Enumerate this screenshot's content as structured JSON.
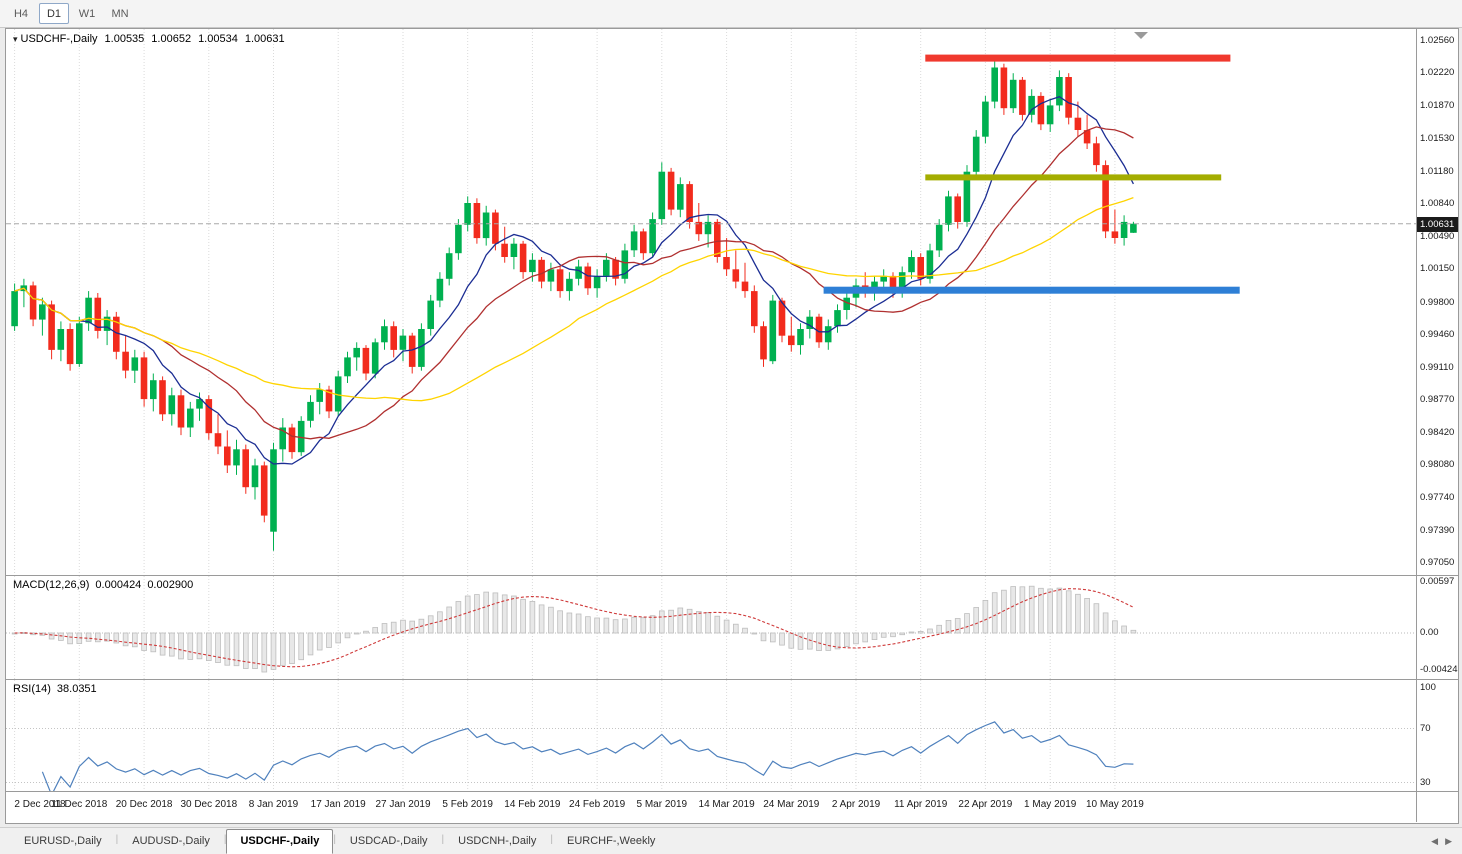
{
  "toolbar": {
    "timeframes": [
      {
        "label": "H4",
        "active": false
      },
      {
        "label": "D1",
        "active": true
      },
      {
        "label": "W1",
        "active": false
      },
      {
        "label": "MN",
        "active": false
      }
    ]
  },
  "chart": {
    "title": "USDCHF-,Daily",
    "ohlc": {
      "open": "1.00535",
      "high": "1.00652",
      "low": "1.00534",
      "close": "1.00631"
    },
    "current_price": "1.00631"
  },
  "indicators": {
    "macd": {
      "name": "MACD(12,26,9)",
      "value_main": "0.000424",
      "value_signal": "0.002900",
      "axis": [
        {
          "label": "0.00597",
          "value": 0.00597
        },
        {
          "label": "0.00",
          "value": 0
        },
        {
          "label": "-0.00424",
          "value": -0.00424
        }
      ]
    },
    "rsi": {
      "name": "RSI(14)",
      "value": "38.0351",
      "levels": [
        70,
        30
      ],
      "axis": [
        {
          "label": "100",
          "value": 100
        },
        {
          "label": "70",
          "value": 70
        },
        {
          "label": "30",
          "value": 30
        }
      ]
    }
  },
  "tabs": {
    "items": [
      {
        "label": "EURUSD-,Daily",
        "active": false
      },
      {
        "label": "AUDUSD-,Daily",
        "active": false
      },
      {
        "label": "USDCHF-,Daily",
        "active": true
      },
      {
        "label": "USDCAD-,Daily",
        "active": false
      },
      {
        "label": "USDCNH-,Daily",
        "active": false
      },
      {
        "label": "EURCHF-,Weekly",
        "active": false
      }
    ]
  },
  "colors": {
    "up": "#00b050",
    "down": "#f22b1d",
    "grid": "#dadada",
    "price_line": "#a8a8a8",
    "badge_bg": "#1b1b1b",
    "macd_hist_fill": "#e8e8e8",
    "macd_hist_stroke": "#bdbdbd",
    "macd_signal": "#cf3a3a",
    "rsi_line": "#4f81bd"
  },
  "chart_data": {
    "type": "candlestick",
    "symbol": "USDCHF",
    "period": "Daily",
    "price_range": {
      "top": 1.0256,
      "bottom": 0.9705
    },
    "price_axis": [
      "1.02560",
      "1.02220",
      "1.01870",
      "1.01530",
      "1.01180",
      "1.00840",
      "1.00490",
      "1.00150",
      "0.99800",
      "0.99460",
      "0.99110",
      "0.98770",
      "0.98420",
      "0.98080",
      "0.97740",
      "0.97390",
      "0.97050"
    ],
    "current_price": 1.00631,
    "x_ticks": [
      {
        "bar": 0,
        "label": "2 Dec 2018"
      },
      {
        "bar": 7,
        "label": "11 Dec 2018"
      },
      {
        "bar": 14,
        "label": "20 Dec 2018"
      },
      {
        "bar": 21,
        "label": "30 Dec 2018"
      },
      {
        "bar": 28,
        "label": "8 Jan 2019"
      },
      {
        "bar": 35,
        "label": "17 Jan 2019"
      },
      {
        "bar": 42,
        "label": "27 Jan 2019"
      },
      {
        "bar": 49,
        "label": "5 Feb 2019"
      },
      {
        "bar": 56,
        "label": "14 Feb 2019"
      },
      {
        "bar": 63,
        "label": "24 Feb 2019"
      },
      {
        "bar": 70,
        "label": "5 Mar 2019"
      },
      {
        "bar": 77,
        "label": "14 Mar 2019"
      },
      {
        "bar": 84,
        "label": "24 Mar 2019"
      },
      {
        "bar": 91,
        "label": "2 Apr 2019"
      },
      {
        "bar": 98,
        "label": "11 Apr 2019"
      },
      {
        "bar": 105,
        "label": "22 Apr 2019"
      },
      {
        "bar": 112,
        "label": "1 May 2019"
      },
      {
        "bar": 119,
        "label": "10 May 2019"
      }
    ],
    "ma_lines": [
      {
        "period": 8,
        "color": "#1b2d93"
      },
      {
        "period": 17,
        "color": "#b03030"
      },
      {
        "period": 34,
        "color": "#ffd400"
      }
    ],
    "hlines": [
      {
        "name": "resistance-red",
        "color": "#f0392e",
        "price": 1.0238,
        "from_bar": 99,
        "to_bar": 132,
        "thickness": 7
      },
      {
        "name": "support-olive",
        "color": "#a4ad00",
        "price": 1.0112,
        "from_bar": 99,
        "to_bar": 131,
        "thickness": 6
      },
      {
        "name": "support-blue",
        "color": "#2e7fd6",
        "price": 0.9993,
        "from_bar": 88,
        "to_bar": 133,
        "thickness": 7
      }
    ],
    "candles": [
      [
        0.9955,
        1.0,
        0.995,
        0.9992
      ],
      [
        0.9992,
        1.0005,
        0.9975,
        0.9998
      ],
      [
        0.9998,
        1.0002,
        0.9955,
        0.9962
      ],
      [
        0.9962,
        0.9985,
        0.9945,
        0.9978
      ],
      [
        0.9978,
        0.9982,
        0.992,
        0.993
      ],
      [
        0.993,
        0.996,
        0.9918,
        0.9952
      ],
      [
        0.9952,
        0.9958,
        0.9908,
        0.9915
      ],
      [
        0.9915,
        0.9965,
        0.9912,
        0.9958
      ],
      [
        0.9958,
        0.9992,
        0.995,
        0.9985
      ],
      [
        0.9985,
        0.999,
        0.9942,
        0.995
      ],
      [
        0.995,
        0.9972,
        0.9935,
        0.9965
      ],
      [
        0.9965,
        0.997,
        0.992,
        0.9928
      ],
      [
        0.9928,
        0.9945,
        0.99,
        0.9908
      ],
      [
        0.9908,
        0.993,
        0.9895,
        0.9922
      ],
      [
        0.9922,
        0.9928,
        0.987,
        0.9878
      ],
      [
        0.9878,
        0.9905,
        0.9865,
        0.9898
      ],
      [
        0.9898,
        0.9902,
        0.9855,
        0.9862
      ],
      [
        0.9862,
        0.989,
        0.985,
        0.9882
      ],
      [
        0.9882,
        0.9888,
        0.984,
        0.9848
      ],
      [
        0.9848,
        0.9875,
        0.9838,
        0.9868
      ],
      [
        0.9868,
        0.9885,
        0.9855,
        0.9878
      ],
      [
        0.9878,
        0.9882,
        0.9835,
        0.9842
      ],
      [
        0.9842,
        0.9862,
        0.982,
        0.9828
      ],
      [
        0.9828,
        0.9845,
        0.98,
        0.9808
      ],
      [
        0.9808,
        0.9835,
        0.9798,
        0.9825
      ],
      [
        0.9825,
        0.983,
        0.9778,
        0.9785
      ],
      [
        0.9785,
        0.9815,
        0.9772,
        0.9808
      ],
      [
        0.9808,
        0.9812,
        0.9748,
        0.9755
      ],
      [
        0.9738,
        0.9832,
        0.9718,
        0.9825
      ],
      [
        0.9825,
        0.9858,
        0.9812,
        0.9848
      ],
      [
        0.9848,
        0.9852,
        0.9815,
        0.9822
      ],
      [
        0.9822,
        0.986,
        0.9818,
        0.9855
      ],
      [
        0.9855,
        0.9882,
        0.9848,
        0.9875
      ],
      [
        0.9875,
        0.9895,
        0.9862,
        0.9888
      ],
      [
        0.9888,
        0.9892,
        0.9858,
        0.9865
      ],
      [
        0.9865,
        0.9908,
        0.986,
        0.9902
      ],
      [
        0.9902,
        0.9928,
        0.9895,
        0.9922
      ],
      [
        0.9922,
        0.9938,
        0.9908,
        0.9932
      ],
      [
        0.9932,
        0.9935,
        0.9898,
        0.9905
      ],
      [
        0.9905,
        0.9942,
        0.99,
        0.9938
      ],
      [
        0.9938,
        0.9962,
        0.993,
        0.9955
      ],
      [
        0.9955,
        0.996,
        0.9922,
        0.993
      ],
      [
        0.993,
        0.9952,
        0.9918,
        0.9945
      ],
      [
        0.9945,
        0.9948,
        0.9905,
        0.9912
      ],
      [
        0.9912,
        0.9958,
        0.9908,
        0.9952
      ],
      [
        0.9952,
        0.9988,
        0.9945,
        0.9982
      ],
      [
        0.9982,
        1.0012,
        0.9975,
        1.0005
      ],
      [
        1.0005,
        1.0038,
        0.9998,
        1.0032
      ],
      [
        1.0032,
        1.0068,
        1.0025,
        1.0062
      ],
      [
        1.0062,
        1.0092,
        1.0055,
        1.0085
      ],
      [
        1.0085,
        1.009,
        1.0042,
        1.0048
      ],
      [
        1.0048,
        1.0082,
        1.004,
        1.0075
      ],
      [
        1.0075,
        1.0078,
        1.0035,
        1.0042
      ],
      [
        1.0042,
        1.006,
        1.0022,
        1.0028
      ],
      [
        1.0028,
        1.0048,
        1.0015,
        1.0042
      ],
      [
        1.0042,
        1.0045,
        1.0005,
        1.0012
      ],
      [
        1.0012,
        1.0032,
        1.0002,
        1.0025
      ],
      [
        1.0025,
        1.0028,
        0.9995,
        1.0002
      ],
      [
        1.0002,
        1.0022,
        0.9992,
        1.0015
      ],
      [
        1.0015,
        1.0018,
        0.9985,
        0.9992
      ],
      [
        0.9992,
        1.0012,
        0.9982,
        1.0005
      ],
      [
        1.0005,
        1.0025,
        0.9998,
        1.0018
      ],
      [
        1.0018,
        1.0022,
        0.9988,
        0.9995
      ],
      [
        0.9995,
        1.0015,
        0.9985,
        1.0008
      ],
      [
        1.0008,
        1.0032,
        1.0002,
        1.0025
      ],
      [
        1.0025,
        1.0028,
        0.9998,
        1.0005
      ],
      [
        1.0005,
        1.0042,
        1.0,
        1.0035
      ],
      [
        1.0035,
        1.0062,
        1.0028,
        1.0055
      ],
      [
        1.0055,
        1.0058,
        1.0025,
        1.0032
      ],
      [
        1.0032,
        1.0075,
        1.0028,
        1.0068
      ],
      [
        1.0068,
        1.0128,
        1.0062,
        1.0118
      ],
      [
        1.0118,
        1.0122,
        1.0072,
        1.0078
      ],
      [
        1.0078,
        1.0112,
        1.007,
        1.0105
      ],
      [
        1.0105,
        1.0108,
        1.0058,
        1.0065
      ],
      [
        1.0065,
        1.0085,
        1.0045,
        1.0052
      ],
      [
        1.0052,
        1.0072,
        1.0038,
        1.0065
      ],
      [
        1.0065,
        1.0068,
        1.0022,
        1.0028
      ],
      [
        1.0028,
        1.0048,
        1.0008,
        1.0015
      ],
      [
        1.0015,
        1.0035,
        0.9995,
        1.0002
      ],
      [
        1.0002,
        1.0022,
        0.9985,
        0.9992
      ],
      [
        0.9992,
        0.9998,
        0.9948,
        0.9955
      ],
      [
        0.9955,
        0.996,
        0.9912,
        0.992
      ],
      [
        0.9918,
        0.9988,
        0.9915,
        0.9982
      ],
      [
        0.9982,
        0.9985,
        0.9938,
        0.9945
      ],
      [
        0.9945,
        0.9965,
        0.9928,
        0.9935
      ],
      [
        0.9935,
        0.9958,
        0.9925,
        0.9952
      ],
      [
        0.9952,
        0.9972,
        0.9942,
        0.9965
      ],
      [
        0.9965,
        0.9968,
        0.9932,
        0.9938
      ],
      [
        0.9938,
        0.9962,
        0.993,
        0.9955
      ],
      [
        0.9955,
        0.9978,
        0.9948,
        0.9972
      ],
      [
        0.9972,
        0.9992,
        0.9962,
        0.9985
      ],
      [
        0.9985,
        1.0005,
        0.9975,
        0.9998
      ],
      [
        0.9998,
        1.0012,
        0.9985,
        0.9992
      ],
      [
        0.9992,
        1.0008,
        0.9982,
        1.0002
      ],
      [
        1.0002,
        1.0015,
        0.9992,
        1.0008
      ],
      [
        1.0008,
        1.0012,
        0.9985,
        0.999
      ],
      [
        0.999,
        1.0018,
        0.9985,
        1.0012
      ],
      [
        1.0012,
        1.0035,
        1.0005,
        1.0028
      ],
      [
        1.0028,
        1.0032,
        0.9998,
        1.0005
      ],
      [
        1.0005,
        1.0042,
        1.0,
        1.0035
      ],
      [
        1.0035,
        1.0068,
        1.0028,
        1.0062
      ],
      [
        1.0062,
        1.0098,
        1.0055,
        1.0092
      ],
      [
        1.0092,
        1.0095,
        1.0058,
        1.0065
      ],
      [
        1.0065,
        1.0125,
        1.006,
        1.0118
      ],
      [
        1.0118,
        1.0162,
        1.0112,
        1.0155
      ],
      [
        1.0155,
        1.0198,
        1.0148,
        1.0192
      ],
      [
        1.0192,
        1.0238,
        1.0185,
        1.0228
      ],
      [
        1.0228,
        1.0232,
        1.0178,
        1.0185
      ],
      [
        1.0185,
        1.0222,
        1.018,
        1.0215
      ],
      [
        1.0215,
        1.0218,
        1.0172,
        1.0178
      ],
      [
        1.0178,
        1.0205,
        1.017,
        1.0198
      ],
      [
        1.0198,
        1.0202,
        1.0162,
        1.0168
      ],
      [
        1.0168,
        1.0195,
        1.016,
        1.0188
      ],
      [
        1.0188,
        1.0225,
        1.0182,
        1.0218
      ],
      [
        1.0218,
        1.0222,
        1.0168,
        1.0175
      ],
      [
        1.0175,
        1.0192,
        1.0155,
        1.0162
      ],
      [
        1.0162,
        1.0178,
        1.0142,
        1.0148
      ],
      [
        1.0148,
        1.0155,
        1.0118,
        1.0125
      ],
      [
        1.0125,
        1.013,
        1.0048,
        1.0055
      ],
      [
        1.0055,
        1.0078,
        1.0042,
        1.0048
      ],
      [
        1.0048,
        1.0072,
        1.004,
        1.0065
      ],
      [
        1.00535,
        1.00652,
        1.00534,
        1.00631
      ]
    ]
  }
}
